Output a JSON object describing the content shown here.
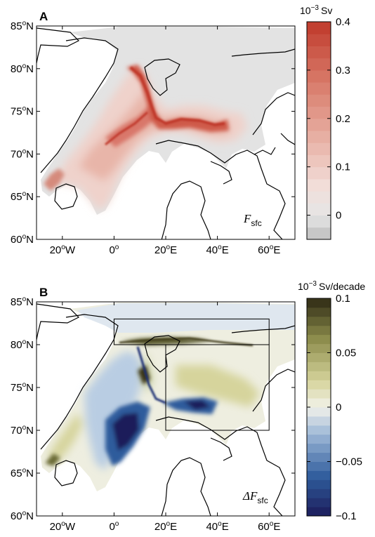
{
  "chart_data": [
    {
      "type": "heatmap",
      "panel_label": "A",
      "map_label": {
        "symbol": "F",
        "subscript": "sfc"
      },
      "colorbar": {
        "title_base": "10",
        "title_exp": "−3",
        "title_unit": "Sv",
        "ticks": [
          "0.4",
          "0.3",
          "0.2",
          "0.1",
          "0"
        ],
        "tick_values": [
          0.4,
          0.3,
          0.2,
          0.1,
          0
        ],
        "range": [
          -0.05,
          0.4
        ],
        "palette": "white-to-red, grey below zero"
      },
      "x_ticks": [
        {
          "deg": "20",
          "hemi": "W"
        },
        {
          "deg": "0",
          "hemi": ""
        },
        {
          "deg": "20",
          "hemi": "E"
        },
        {
          "deg": "40",
          "hemi": "E"
        },
        {
          "deg": "60",
          "hemi": "E"
        }
      ],
      "y_ticks": [
        {
          "deg": "85",
          "hemi": "N"
        },
        {
          "deg": "80",
          "hemi": "N"
        },
        {
          "deg": "75",
          "hemi": "N"
        },
        {
          "deg": "70",
          "hemi": "N"
        },
        {
          "deg": "65",
          "hemi": "N"
        },
        {
          "deg": "60",
          "hemi": "N"
        }
      ],
      "lon_range": [
        -30,
        70
      ],
      "lat_range": [
        60,
        85
      ],
      "colors": {
        "zero": "#e3e3e3",
        "low": "#f0cfc8",
        "mid": "#e39b8b",
        "high": "#c8412e",
        "negative": "#bcbcbc"
      }
    },
    {
      "type": "heatmap",
      "panel_label": "B",
      "map_label": {
        "symbol": "ΔF",
        "subscript": "sfc"
      },
      "colorbar": {
        "title_base": "10",
        "title_exp": "−3",
        "title_unit": "Sv/decade",
        "ticks": [
          "0.1",
          "0.05",
          "0",
          "−0.05",
          "−0.1"
        ],
        "tick_values": [
          0.1,
          0.05,
          0,
          -0.05,
          -0.1
        ],
        "range": [
          -0.1,
          0.1
        ],
        "palette": "blue-white-olive diverging"
      },
      "x_ticks": [
        {
          "deg": "20",
          "hemi": "W"
        },
        {
          "deg": "0",
          "hemi": ""
        },
        {
          "deg": "20",
          "hemi": "E"
        },
        {
          "deg": "40",
          "hemi": "E"
        },
        {
          "deg": "60",
          "hemi": "E"
        }
      ],
      "y_ticks": [
        {
          "deg": "85",
          "hemi": "N"
        },
        {
          "deg": "80",
          "hemi": "N"
        },
        {
          "deg": "75",
          "hemi": "N"
        },
        {
          "deg": "70",
          "hemi": "N"
        },
        {
          "deg": "65",
          "hemi": "N"
        },
        {
          "deg": "60",
          "hemi": "N"
        }
      ],
      "lon_range": [
        -30,
        70
      ],
      "lat_range": [
        60,
        85
      ],
      "boxes": [
        {
          "lon": [
            0,
            60
          ],
          "lat": [
            80,
            83
          ]
        },
        {
          "lon": [
            20,
            60
          ],
          "lat": [
            70,
            80
          ]
        }
      ],
      "colors": {
        "strong_neg": "#1c1c5a",
        "neg": "#2f5c9c",
        "weak_neg": "#b9cde3",
        "zero": "#eeeee0",
        "pos": "#d6d49c",
        "strong_pos": "#3a3618"
      }
    }
  ]
}
